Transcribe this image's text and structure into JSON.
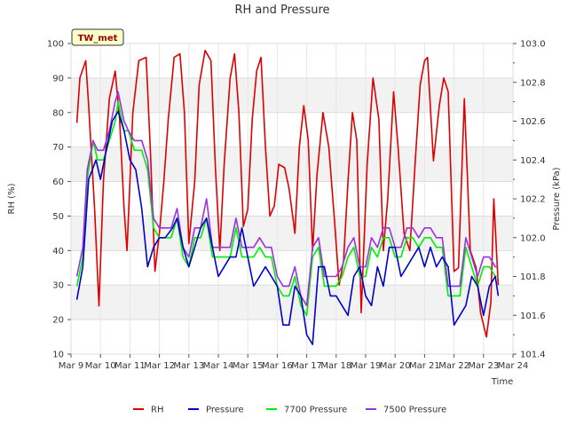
{
  "chart_data": {
    "type": "line",
    "title": "RH and Pressure",
    "xlabel": "Time",
    "ylabel": "RH (%)",
    "y2label": "Pressure (kPa)",
    "annotation": "TW_met",
    "x_ticks": [
      "Mar 9",
      "Mar 10",
      "Mar 11",
      "Mar 12",
      "Mar 13",
      "Mar 14",
      "Mar 15",
      "Mar 16",
      "Mar 17",
      "Mar 18",
      "Mar 19",
      "Mar 20",
      "Mar 21",
      "Mar 22",
      "Mar 23",
      "Mar 24"
    ],
    "xlim": [
      0,
      15
    ],
    "ylim": [
      10,
      100
    ],
    "y_ticks": [
      10,
      20,
      30,
      40,
      50,
      60,
      70,
      80,
      90,
      100
    ],
    "y2lim": [
      101.4,
      103.0
    ],
    "y2_ticks": [
      101.4,
      101.6,
      101.8,
      102.0,
      102.2,
      102.4,
      102.6,
      102.8,
      103.0
    ],
    "grid": true,
    "legend_position": "bottom",
    "colors": {
      "RH": "#dd0000",
      "Pressure": "#0000cc",
      "7700 Pressure": "#00ee00",
      "7500 Pressure": "#9933dd"
    },
    "series": [
      {
        "name": "RH",
        "axis": "left",
        "x": [
          0.2,
          0.3,
          0.5,
          0.6,
          0.8,
          0.95,
          1.1,
          1.3,
          1.5,
          1.65,
          1.8,
          1.9,
          2.1,
          2.3,
          2.55,
          2.7,
          2.85,
          3.0,
          3.15,
          3.3,
          3.5,
          3.7,
          3.85,
          4.0,
          4.2,
          4.35,
          4.55,
          4.75,
          4.9,
          5.05,
          5.2,
          5.4,
          5.55,
          5.7,
          5.85,
          6.0,
          6.15,
          6.3,
          6.45,
          6.6,
          6.75,
          6.9,
          7.05,
          7.25,
          7.4,
          7.6,
          7.75,
          7.9,
          8.05,
          8.2,
          8.35,
          8.55,
          8.75,
          8.95,
          9.1,
          9.25,
          9.4,
          9.55,
          9.7,
          9.85,
          10.05,
          10.25,
          10.45,
          10.6,
          10.75,
          10.95,
          11.1,
          11.3,
          11.5,
          11.7,
          11.85,
          12.0,
          12.1,
          12.3,
          12.5,
          12.65,
          12.8,
          13.0,
          13.15,
          13.35,
          13.55,
          13.75,
          13.9,
          14.1,
          14.25,
          14.35,
          14.5
        ],
        "y": [
          77,
          90,
          95,
          82,
          52,
          24,
          60,
          84,
          92,
          78,
          52,
          40,
          80,
          95,
          96,
          68,
          34,
          45,
          60,
          78,
          96,
          97,
          80,
          42,
          60,
          88,
          98,
          95,
          64,
          40,
          65,
          90,
          97,
          80,
          47,
          52,
          78,
          92,
          96,
          70,
          50,
          53,
          65,
          64,
          58,
          45,
          70,
          82,
          72,
          40,
          62,
          80,
          70,
          48,
          30,
          37,
          60,
          80,
          72,
          22,
          65,
          90,
          78,
          40,
          55,
          86,
          70,
          45,
          40,
          68,
          88,
          95,
          96,
          66,
          82,
          90,
          86,
          34,
          35,
          84,
          40,
          35,
          22,
          15,
          25,
          55,
          30
        ]
      },
      {
        "name": "Pressure",
        "axis": "right",
        "x": [
          0.2,
          0.4,
          0.6,
          0.85,
          1.0,
          1.2,
          1.4,
          1.6,
          1.8,
          2.0,
          2.2,
          2.4,
          2.6,
          2.8,
          3.0,
          3.2,
          3.45,
          3.6,
          3.8,
          4.0,
          4.2,
          4.4,
          4.6,
          4.8,
          5.0,
          5.2,
          5.4,
          5.6,
          5.8,
          6.0,
          6.2,
          6.4,
          6.6,
          6.8,
          7.0,
          7.2,
          7.4,
          7.6,
          7.8,
          8.0,
          8.2,
          8.4,
          8.6,
          8.8,
          9.0,
          9.2,
          9.4,
          9.6,
          9.8,
          10.0,
          10.2,
          10.4,
          10.6,
          10.8,
          11.0,
          11.2,
          11.4,
          11.6,
          11.8,
          12.0,
          12.2,
          12.4,
          12.6,
          12.8,
          13.0,
          13.2,
          13.4,
          13.6,
          13.8,
          14.0,
          14.2,
          14.4,
          14.5
        ],
        "y": [
          101.68,
          101.85,
          102.3,
          102.4,
          102.3,
          102.45,
          102.6,
          102.65,
          102.55,
          102.4,
          102.35,
          102.15,
          101.85,
          101.95,
          102.0,
          102.0,
          102.05,
          102.1,
          101.95,
          101.85,
          101.95,
          102.05,
          102.1,
          101.95,
          101.8,
          101.85,
          101.9,
          101.9,
          102.05,
          101.9,
          101.75,
          101.8,
          101.85,
          101.8,
          101.75,
          101.55,
          101.55,
          101.75,
          101.7,
          101.5,
          101.45,
          101.85,
          101.85,
          101.7,
          101.7,
          101.65,
          101.6,
          101.8,
          101.85,
          101.7,
          101.65,
          101.85,
          101.75,
          101.95,
          101.95,
          101.8,
          101.85,
          101.9,
          101.95,
          101.85,
          101.95,
          101.85,
          101.9,
          101.85,
          101.55,
          101.6,
          101.65,
          101.8,
          101.75,
          101.6,
          101.75,
          101.8,
          101.7
        ]
      },
      {
        "name": "7700 Pressure",
        "axis": "right",
        "x": [
          0.2,
          0.4,
          0.55,
          0.75,
          0.9,
          1.1,
          1.3,
          1.5,
          1.6,
          1.8,
          1.95,
          2.15,
          2.4,
          2.6,
          2.8,
          3.0,
          3.2,
          3.4,
          3.6,
          3.8,
          4.0,
          4.2,
          4.4,
          4.6,
          4.8,
          5.0,
          5.2,
          5.4,
          5.6,
          5.8,
          6.0,
          6.2,
          6.4,
          6.6,
          6.8,
          7.0,
          7.2,
          7.4,
          7.6,
          7.8,
          8.0,
          8.2,
          8.4,
          8.6,
          8.8,
          9.0,
          9.2,
          9.4,
          9.6,
          9.8,
          10.0,
          10.2,
          10.4,
          10.6,
          10.8,
          11.0,
          11.2,
          11.4,
          11.6,
          11.8,
          12.0,
          12.2,
          12.4,
          12.6,
          12.8,
          13.0,
          13.2,
          13.4,
          13.6,
          13.8,
          14.0,
          14.2,
          14.4,
          14.5
        ],
        "y": [
          101.75,
          101.9,
          102.3,
          102.5,
          102.4,
          102.4,
          102.5,
          102.6,
          102.7,
          102.55,
          102.55,
          102.45,
          102.45,
          102.35,
          102.05,
          102.0,
          102.0,
          102.0,
          102.1,
          101.9,
          101.85,
          102.0,
          102.0,
          102.1,
          101.9,
          101.9,
          101.9,
          101.9,
          102.05,
          101.9,
          101.9,
          101.9,
          101.95,
          101.9,
          101.9,
          101.75,
          101.7,
          101.7,
          101.8,
          101.65,
          101.6,
          101.9,
          101.95,
          101.75,
          101.75,
          101.75,
          101.8,
          101.9,
          101.95,
          101.8,
          101.8,
          101.95,
          101.9,
          102.0,
          102.0,
          101.9,
          101.9,
          102.0,
          102.0,
          101.95,
          102.0,
          102.0,
          101.95,
          101.95,
          101.7,
          101.7,
          101.7,
          101.95,
          101.85,
          101.75,
          101.85,
          101.85,
          101.8,
          101.8
        ]
      },
      {
        "name": "7500 Pressure",
        "axis": "right",
        "x": [
          0.2,
          0.4,
          0.55,
          0.75,
          0.9,
          1.1,
          1.3,
          1.5,
          1.6,
          1.8,
          1.95,
          2.15,
          2.4,
          2.6,
          2.8,
          3.0,
          3.2,
          3.4,
          3.6,
          3.8,
          4.0,
          4.2,
          4.4,
          4.6,
          4.8,
          5.0,
          5.2,
          5.4,
          5.6,
          5.8,
          6.0,
          6.2,
          6.4,
          6.6,
          6.8,
          7.0,
          7.2,
          7.4,
          7.6,
          7.8,
          8.0,
          8.2,
          8.4,
          8.6,
          8.8,
          9.0,
          9.2,
          9.4,
          9.6,
          9.8,
          10.0,
          10.2,
          10.4,
          10.6,
          10.8,
          11.0,
          11.2,
          11.4,
          11.6,
          11.8,
          12.0,
          12.2,
          12.4,
          12.6,
          12.8,
          13.0,
          13.2,
          13.4,
          13.6,
          13.8,
          14.0,
          14.2,
          14.4,
          14.5
        ],
        "y": [
          101.8,
          101.95,
          102.35,
          102.5,
          102.45,
          102.45,
          102.55,
          102.7,
          102.75,
          102.6,
          102.55,
          102.5,
          102.5,
          102.4,
          102.1,
          102.05,
          102.05,
          102.05,
          102.15,
          101.95,
          101.9,
          102.05,
          102.05,
          102.2,
          101.95,
          101.95,
          101.95,
          101.95,
          102.1,
          101.95,
          101.95,
          101.95,
          102.0,
          101.95,
          101.95,
          101.8,
          101.75,
          101.75,
          101.85,
          101.7,
          101.65,
          101.95,
          102.0,
          101.8,
          101.8,
          101.8,
          101.85,
          101.95,
          102.0,
          101.85,
          101.85,
          102.0,
          101.95,
          102.05,
          102.05,
          101.95,
          101.95,
          102.05,
          102.05,
          102.0,
          102.05,
          102.05,
          102.0,
          102.0,
          101.75,
          101.75,
          101.75,
          102.0,
          101.9,
          101.8,
          101.9,
          101.9,
          101.85,
          101.85
        ]
      }
    ]
  }
}
